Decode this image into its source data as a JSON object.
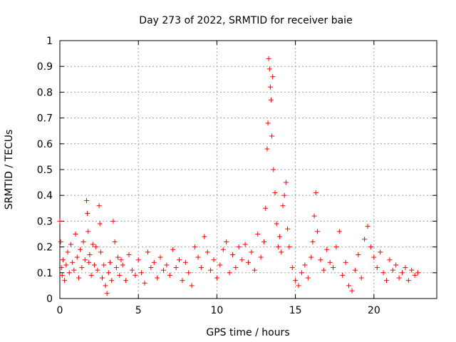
{
  "chart_data": {
    "type": "scatter",
    "title": "Day 273 of 2022, SRMTID for receiver baie",
    "xlabel": "GPS time / hours",
    "ylabel": "SRMTID / TECUs",
    "xlim": [
      0,
      24
    ],
    "ylim": [
      0,
      1
    ],
    "xticks": [
      0,
      5,
      10,
      15,
      20
    ],
    "xtick_labels": [
      "0",
      "5",
      "10",
      "15",
      "20"
    ],
    "yticks": [
      0,
      0.1,
      0.2,
      0.3,
      0.4,
      0.5,
      0.6,
      0.7,
      0.8,
      0.9,
      1
    ],
    "ytick_labels": [
      "0",
      "0.1",
      "0.2",
      "0.3",
      "0.4",
      "0.5",
      "0.6",
      "0.7",
      "0.8",
      "0.9",
      "1"
    ],
    "grid": true,
    "marker": "+",
    "color": "#ff0000",
    "series": [
      {
        "name": "SRMTID",
        "x": [
          0.0,
          0.05,
          0.1,
          0.15,
          0.2,
          0.3,
          0.4,
          0.5,
          0.6,
          0.7,
          0.8,
          0.9,
          1.0,
          1.1,
          1.2,
          1.3,
          1.4,
          1.5,
          1.6,
          1.7,
          1.75,
          1.8,
          1.85,
          1.9,
          2.0,
          2.1,
          2.2,
          2.3,
          2.4,
          2.5,
          2.55,
          2.6,
          2.7,
          2.8,
          2.9,
          3.0,
          3.1,
          3.2,
          3.3,
          3.4,
          3.5,
          3.6,
          3.7,
          3.8,
          3.9,
          4.0,
          4.2,
          4.4,
          4.6,
          4.8,
          5.0,
          5.2,
          5.4,
          5.6,
          5.8,
          6.0,
          6.2,
          6.4,
          6.6,
          6.8,
          7.0,
          7.2,
          7.4,
          7.6,
          7.8,
          8.0,
          8.2,
          8.4,
          8.6,
          8.8,
          9.0,
          9.2,
          9.4,
          9.6,
          9.8,
          10.0,
          10.2,
          10.4,
          10.6,
          10.8,
          11.0,
          11.2,
          11.4,
          11.6,
          11.8,
          12.0,
          12.2,
          12.4,
          12.6,
          12.8,
          13.0,
          13.1,
          13.2,
          13.25,
          13.3,
          13.35,
          13.4,
          13.45,
          13.5,
          13.55,
          13.6,
          13.7,
          13.8,
          13.9,
          14.0,
          14.1,
          14.2,
          14.3,
          14.4,
          14.5,
          14.6,
          14.8,
          15.0,
          15.2,
          15.4,
          15.6,
          15.8,
          16.0,
          16.1,
          16.2,
          16.3,
          16.4,
          16.6,
          16.8,
          17.0,
          17.2,
          17.4,
          17.6,
          17.8,
          18.0,
          18.2,
          18.4,
          18.6,
          18.8,
          19.0,
          19.2,
          19.4,
          19.6,
          19.8,
          20.0,
          20.2,
          20.4,
          20.6,
          20.8,
          21.0,
          21.2,
          21.4,
          21.6,
          21.8,
          22.0,
          22.2,
          22.4,
          22.6,
          22.8
        ],
        "y": [
          0.3,
          0.22,
          0.12,
          0.09,
          0.15,
          0.07,
          0.13,
          0.18,
          0.1,
          0.21,
          0.14,
          0.11,
          0.25,
          0.16,
          0.08,
          0.19,
          0.12,
          0.22,
          0.15,
          0.38,
          0.33,
          0.26,
          0.14,
          0.17,
          0.09,
          0.21,
          0.13,
          0.2,
          0.11,
          0.36,
          0.29,
          0.18,
          0.08,
          0.13,
          0.05,
          0.02,
          0.1,
          0.14,
          0.07,
          0.3,
          0.22,
          0.12,
          0.16,
          0.09,
          0.15,
          0.13,
          0.07,
          0.17,
          0.11,
          0.09,
          0.15,
          0.1,
          0.06,
          0.18,
          0.12,
          0.14,
          0.08,
          0.16,
          0.11,
          0.13,
          0.09,
          0.19,
          0.12,
          0.15,
          0.07,
          0.14,
          0.1,
          0.05,
          0.2,
          0.16,
          0.12,
          0.24,
          0.18,
          0.11,
          0.15,
          0.08,
          0.13,
          0.19,
          0.22,
          0.1,
          0.17,
          0.12,
          0.2,
          0.15,
          0.21,
          0.14,
          0.18,
          0.11,
          0.25,
          0.16,
          0.22,
          0.35,
          0.58,
          0.68,
          0.93,
          0.89,
          0.82,
          0.77,
          0.63,
          0.86,
          0.5,
          0.41,
          0.29,
          0.2,
          0.24,
          0.18,
          0.36,
          0.4,
          0.45,
          0.27,
          0.2,
          0.12,
          0.07,
          0.05,
          0.1,
          0.13,
          0.08,
          0.16,
          0.22,
          0.32,
          0.41,
          0.26,
          0.15,
          0.11,
          0.19,
          0.14,
          0.12,
          0.2,
          0.26,
          0.09,
          0.14,
          0.05,
          0.03,
          0.11,
          0.17,
          0.08,
          0.23,
          0.28,
          0.2,
          0.16,
          0.12,
          0.18,
          0.1,
          0.07,
          0.15,
          0.11,
          0.13,
          0.08,
          0.1,
          0.12,
          0.07,
          0.11,
          0.09,
          0.1
        ]
      }
    ]
  }
}
